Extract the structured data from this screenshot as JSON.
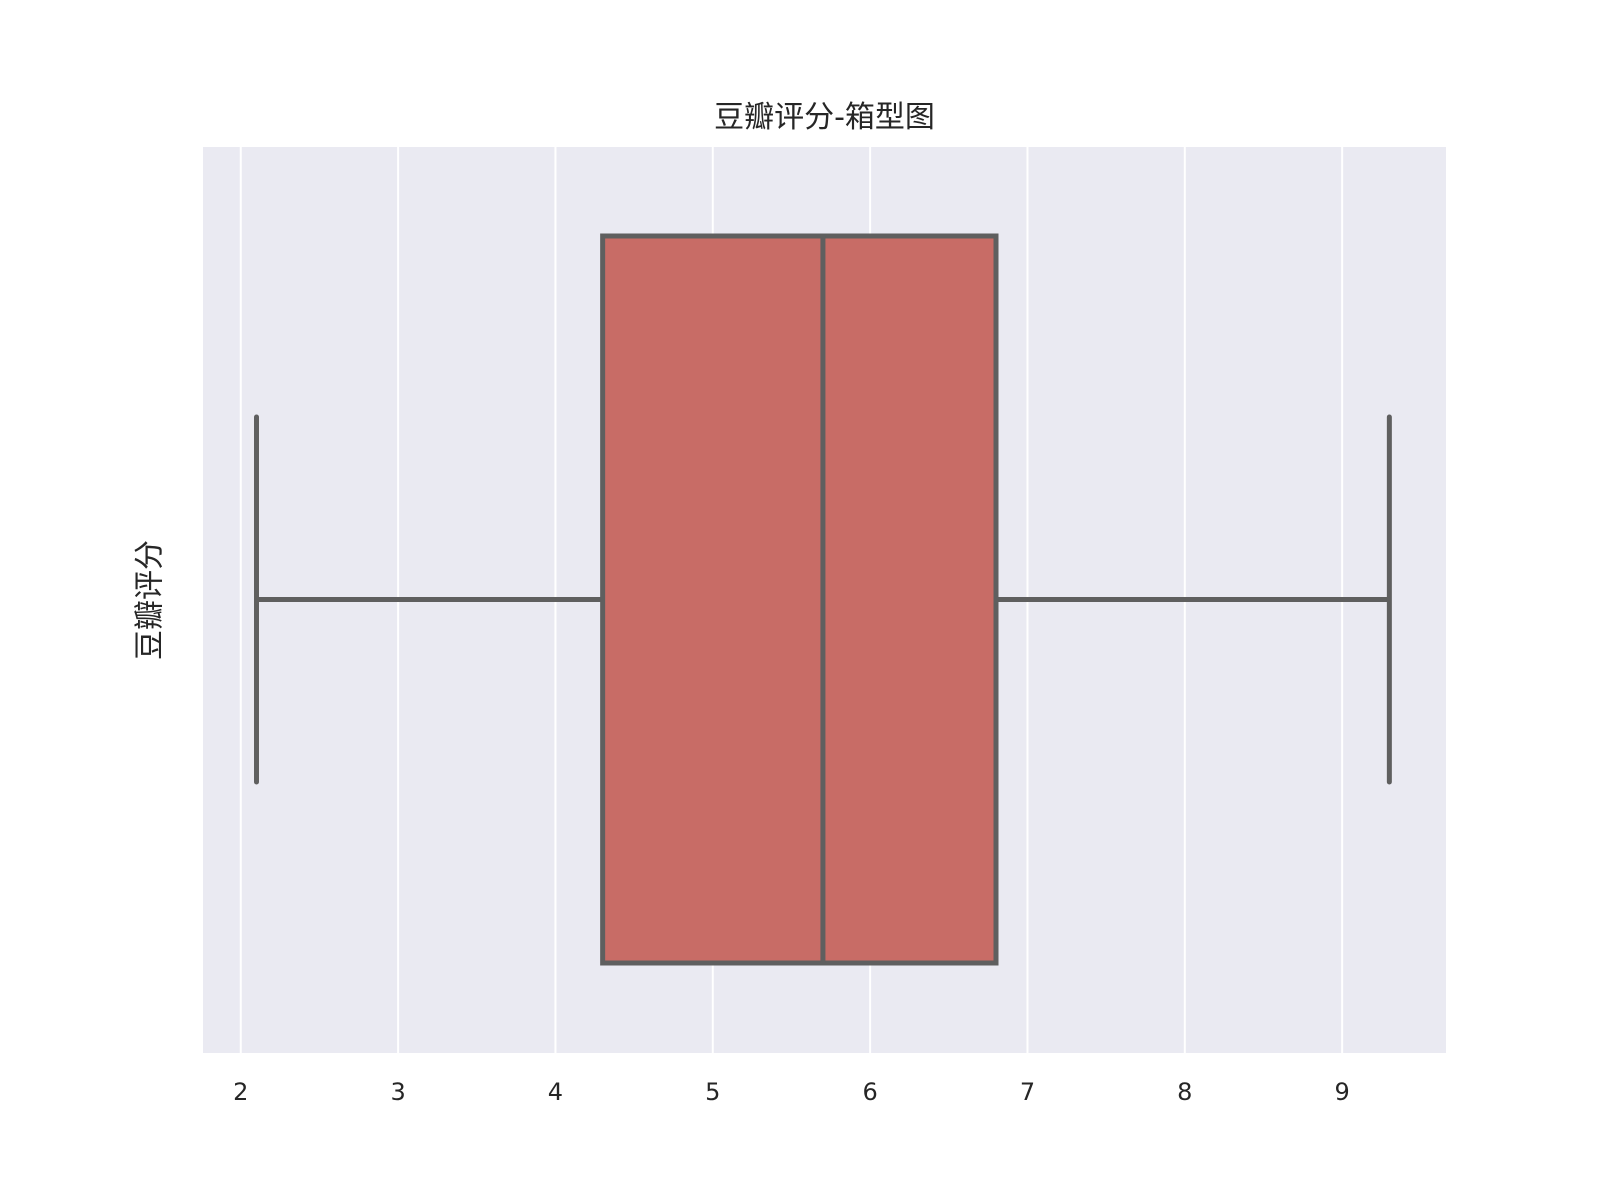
{
  "chart_data": {
    "type": "box",
    "title": "豆瓣评分-箱型图",
    "xlabel": "",
    "ylabel": "豆瓣评分",
    "xlim": [
      1.76,
      9.66
    ],
    "xticks": [
      2,
      3,
      4,
      5,
      6,
      7,
      8,
      9
    ],
    "grid": true,
    "orientation": "horizontal",
    "box": {
      "whisker_low": 2.1,
      "q1": 4.3,
      "median": 5.7,
      "q3": 6.8,
      "whisker_high": 9.3
    },
    "colors": {
      "plot_background": "#eaeaf2",
      "grid": "#ffffff",
      "box_fill": "#c86c66",
      "box_edge": "#5f5f5f"
    }
  }
}
